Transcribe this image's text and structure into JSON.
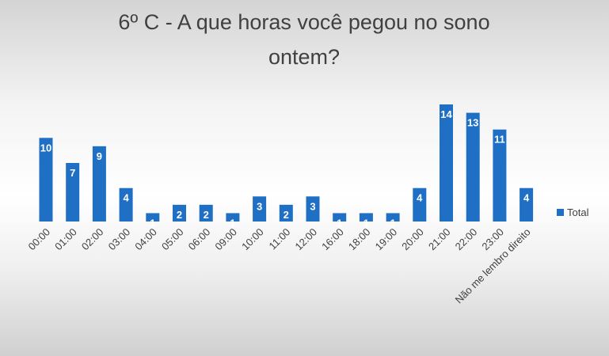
{
  "chart_data": {
    "type": "bar",
    "title": "6º C - A que horas você pegou no sono ontem?",
    "categories": [
      "00:00",
      "01:00",
      "02:00",
      "03:00",
      "04:00",
      "05:00",
      "06:00",
      "09:00",
      "10:00",
      "11:00",
      "12:00",
      "16:00",
      "18:00",
      "19:00",
      "20:00",
      "21:00",
      "22:00",
      "23:00",
      "Não me lembro direito"
    ],
    "series": [
      {
        "name": "Total",
        "color": "#1f6fc4",
        "values": [
          10,
          7,
          9,
          4,
          1,
          2,
          2,
          1,
          3,
          2,
          3,
          1,
          1,
          1,
          4,
          14,
          13,
          11,
          4
        ]
      }
    ]
  }
}
